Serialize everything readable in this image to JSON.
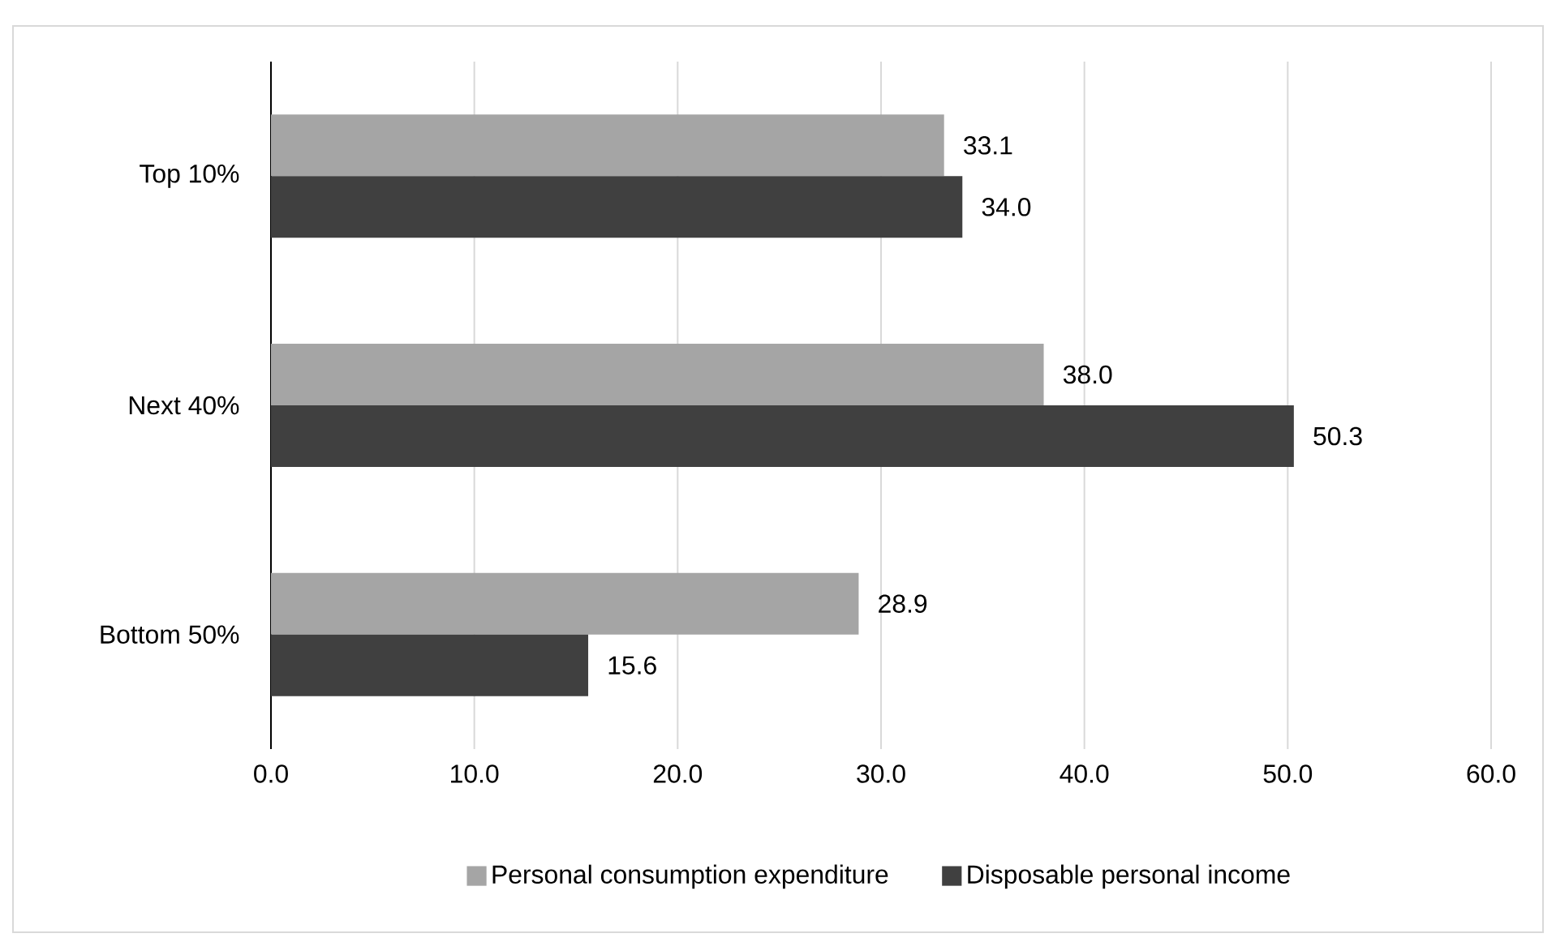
{
  "chart_data": {
    "type": "bar",
    "orientation": "horizontal",
    "categories": [
      "Top 10%",
      "Next 40%",
      "Bottom 50%"
    ],
    "series": [
      {
        "name": "Personal consumption expenditure",
        "color": "#a5a5a5",
        "values": [
          33.1,
          38.0,
          28.9
        ],
        "value_labels": [
          "33.1",
          "38.0",
          "28.9"
        ]
      },
      {
        "name": "Disposable personal income",
        "color": "#404040",
        "values": [
          34.0,
          50.3,
          15.6
        ],
        "value_labels": [
          "34.0",
          "50.3",
          "15.6"
        ]
      }
    ],
    "xlim": [
      0,
      60
    ],
    "xticks": [
      {
        "value": 0,
        "label": "0.0"
      },
      {
        "value": 10,
        "label": "10.0"
      },
      {
        "value": 20,
        "label": "20.0"
      },
      {
        "value": 30,
        "label": "30.0"
      },
      {
        "value": 40,
        "label": "40.0"
      },
      {
        "value": 50,
        "label": "50.0"
      },
      {
        "value": 60,
        "label": "60.0"
      }
    ],
    "grid": "x",
    "legend": "bottom"
  }
}
